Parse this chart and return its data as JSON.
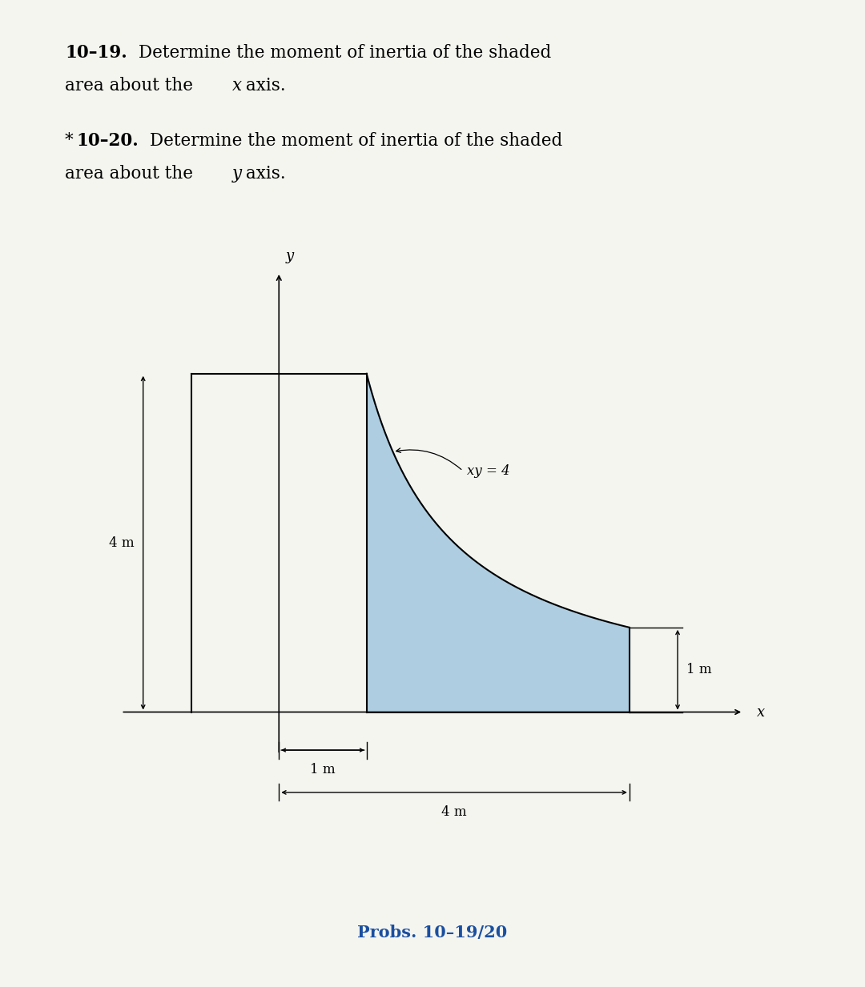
{
  "prob_label": "Probs. 10–19/20",
  "curve_label": "xy = 4",
  "dim_4m_vert": "4 m",
  "dim_1m_horiz": "1 m",
  "dim_4m_horiz": "4 m",
  "dim_1m_vert": "1 m",
  "shaded_color": "#aecde0",
  "background_color": "#f5f5f0",
  "k": 4.0,
  "prob_color": "#1a4fa0"
}
